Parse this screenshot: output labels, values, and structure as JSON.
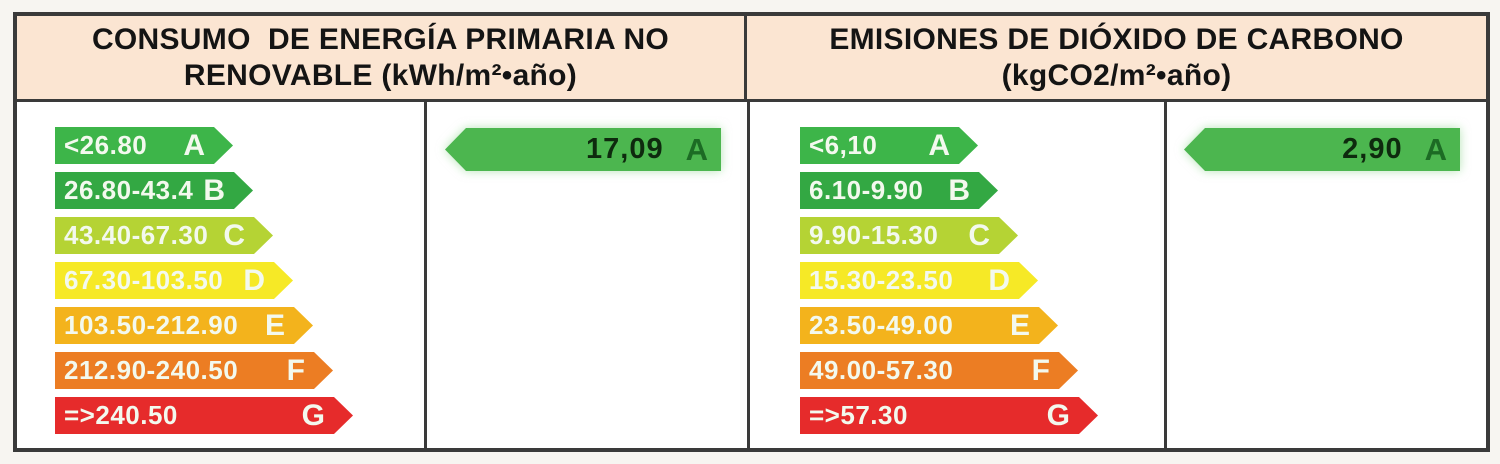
{
  "colors": {
    "header_background": "#fbe5d2",
    "border": "#3a3a3a",
    "value_arrow_green": "#4cb64f",
    "rating_colors": {
      "A": "#3db549",
      "B": "#33a843",
      "C": "#b5d334",
      "D": "#f6e926",
      "E": "#f3b31c",
      "F": "#ec7d23",
      "G": "#e62b2b"
    }
  },
  "chart_data": [
    {
      "type": "bar",
      "title_line1": "CONSUMO  DE ENERGÍA PRIMARIA NO",
      "title_line2": "RENOVABLE (kWh/m²•año)",
      "categories": [
        "A",
        "B",
        "C",
        "D",
        "E",
        "F",
        "G"
      ],
      "ranges": [
        "<26.80",
        "26.80-43.4",
        "43.40-67.30",
        "67.30-103.50",
        "103.50-212.90",
        "212.90-240.50",
        "=>240.50"
      ],
      "bar_colors": [
        "#3db549",
        "#33a843",
        "#b5d334",
        "#f6e926",
        "#f3b31c",
        "#ec7d23",
        "#e62b2b"
      ],
      "value": 17.09,
      "value_label": "17,09",
      "value_rating": "A",
      "legend_position": "none",
      "grid": false
    },
    {
      "type": "bar",
      "title_line1": "EMISIONES DE DIÓXIDO DE CARBONO",
      "title_line2": "(kgCO2/m²•año)",
      "categories": [
        "A",
        "B",
        "C",
        "D",
        "E",
        "F",
        "G"
      ],
      "ranges": [
        "<6,10",
        "6.10-9.90",
        "9.90-15.30",
        "15.30-23.50",
        "23.50-49.00",
        "49.00-57.30",
        "=>57.30"
      ],
      "bar_colors": [
        "#3db549",
        "#33a843",
        "#b5d334",
        "#f6e926",
        "#f3b31c",
        "#ec7d23",
        "#e62b2b"
      ],
      "value": 2.9,
      "value_label": "2,90",
      "value_rating": "A",
      "legend_position": "none",
      "grid": false
    }
  ]
}
